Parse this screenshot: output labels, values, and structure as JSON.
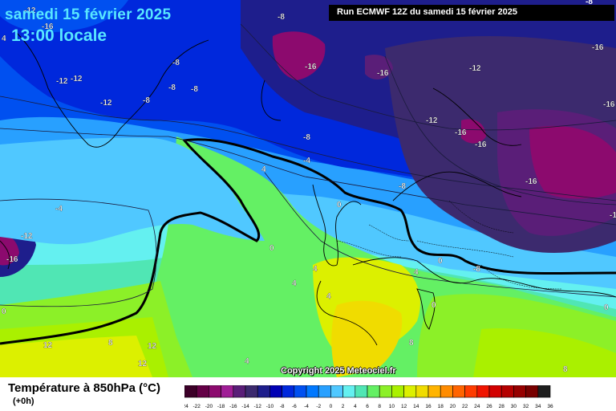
{
  "header": {
    "date": "samedi 15 février 2025",
    "local_time": "13:00 locale",
    "run": "Run ECMWF 12Z du samedi 15 février 2025",
    "corner_label": "-8"
  },
  "footer": {
    "parameter": "Température à 850hPa (°C)",
    "offset": "(+0h)",
    "copyright": "Copyright 2025 Meteociel.fr"
  },
  "scale": {
    "values": [
      "-24",
      "-22",
      "-20",
      "-18",
      "-16",
      "-14",
      "-12",
      "-10",
      "-8",
      "-6",
      "-4",
      "-2",
      "0",
      "2",
      "4",
      "6",
      "8",
      "10",
      "12",
      "14",
      "16",
      "18",
      "20",
      "22",
      "24",
      "26",
      "28",
      "30",
      "32",
      "34",
      "36"
    ],
    "colors": [
      "#3c0028",
      "#640046",
      "#8c0a6e",
      "#a01e96",
      "#5a1e78",
      "#3c2a6e",
      "#1e1e8c",
      "#0000b4",
      "#0028dc",
      "#0050f0",
      "#0078ff",
      "#28a0ff",
      "#50c8ff",
      "#64f0f0",
      "#50e6b4",
      "#64f064",
      "#8cf028",
      "#aaf000",
      "#dcf000",
      "#f0dc00",
      "#ffb400",
      "#ff8c00",
      "#ff6400",
      "#ff3c00",
      "#f01400",
      "#d20000",
      "#b40000",
      "#960000",
      "#780000",
      "#1e1e1e"
    ]
  },
  "map_labels": [
    {
      "text": "-12",
      "color": "#ffffff"
    },
    {
      "text": "-16",
      "color": "#ffffff"
    },
    {
      "text": "-12",
      "color": "#ffffff"
    },
    {
      "text": "-12",
      "color": "#ffffff"
    },
    {
      "text": "-8",
      "color": "#ffffff"
    },
    {
      "text": "-8",
      "color": "#ffffff"
    },
    {
      "text": "-12",
      "color": "#ffffff"
    },
    {
      "text": "-8",
      "color": "#ffffff"
    },
    {
      "text": "-8",
      "color": "#ffffff"
    },
    {
      "text": "-16",
      "color": "#ffffff"
    },
    {
      "text": "-16",
      "color": "#ffffff"
    },
    {
      "text": "-12",
      "color": "#ffffff"
    },
    {
      "text": "-16",
      "color": "#ffffff"
    },
    {
      "text": "-16",
      "color": "#ffffff"
    },
    {
      "text": "-12",
      "color": "#ffffff"
    },
    {
      "text": "-16",
      "color": "#ffffff"
    },
    {
      "text": "-16",
      "color": "#ffffff"
    },
    {
      "text": "-16",
      "color": "#ffffff"
    },
    {
      "text": "-16",
      "color": "#ffffff"
    },
    {
      "text": "-8",
      "color": "#ffffff"
    },
    {
      "text": "-4",
      "color": "#ffffff"
    },
    {
      "text": "-8",
      "color": "#ffffff"
    },
    {
      "text": "-4",
      "color": "#ffffff"
    },
    {
      "text": "-8",
      "color": "#ffffff"
    },
    {
      "text": "-12",
      "color": "#ffffff"
    },
    {
      "text": "-16",
      "color": "#ffffff"
    },
    {
      "text": "-8",
      "color": "#ffffff"
    },
    {
      "text": "4",
      "color": "#ffffff"
    },
    {
      "text": "0",
      "color": "#ffffff"
    },
    {
      "text": "0",
      "color": "#ffffff"
    },
    {
      "text": "4",
      "color": "#ffffff"
    },
    {
      "text": "4",
      "color": "#ffffff"
    },
    {
      "text": "4",
      "color": "#ffffff"
    },
    {
      "text": "4",
      "color": "#ffffff"
    },
    {
      "text": "0",
      "color": "#ffffff"
    },
    {
      "text": "0",
      "color": "#ffffff"
    },
    {
      "text": "0",
      "color": "#ffffff"
    },
    {
      "text": "8",
      "color": "#ffffff"
    },
    {
      "text": "8",
      "color": "#ffffff"
    },
    {
      "text": "12",
      "color": "#ffffff"
    },
    {
      "text": "12",
      "color": "#ffffff"
    },
    {
      "text": "4",
      "color": "#ffffff"
    },
    {
      "text": "8",
      "color": "#ffffff"
    },
    {
      "text": "4",
      "color": "#ffffff"
    },
    {
      "text": "12",
      "color": "#ffffff"
    },
    {
      "text": "0",
      "color": "#ffffff"
    },
    {
      "text": "4",
      "color": "#ffffff"
    }
  ]
}
